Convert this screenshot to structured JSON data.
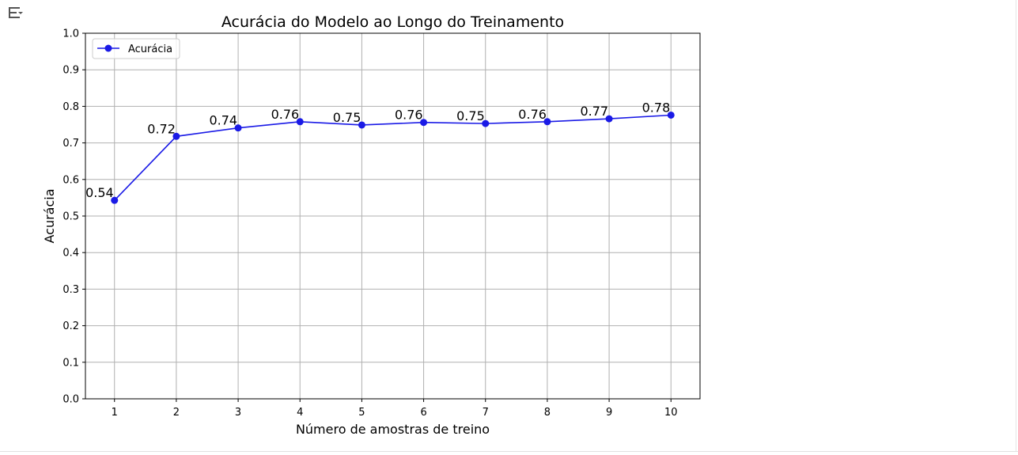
{
  "toolbar": {
    "output_icon": "output-options-icon"
  },
  "chart_data": {
    "type": "line",
    "title": "Acurácia do Modelo ao Longo do Treinamento",
    "xlabel": "Número de amostras de treino",
    "ylabel": "Acurácia",
    "x": [
      1,
      2,
      3,
      4,
      5,
      6,
      7,
      8,
      9,
      10
    ],
    "xlim": [
      0.53,
      10.47
    ],
    "ylim": [
      0.0,
      1.0
    ],
    "yticks": [
      "0.0",
      "0.1",
      "0.2",
      "0.3",
      "0.4",
      "0.5",
      "0.6",
      "0.7",
      "0.8",
      "0.9",
      "1.0"
    ],
    "xticks": [
      "1",
      "2",
      "3",
      "4",
      "5",
      "6",
      "7",
      "8",
      "9",
      "10"
    ],
    "grid": true,
    "legend_position": "top-left",
    "series": [
      {
        "name": "Acurácia",
        "color": "#1a1ae6",
        "marker": "circle",
        "values": [
          0.543,
          0.718,
          0.741,
          0.758,
          0.749,
          0.756,
          0.753,
          0.758,
          0.766,
          0.776
        ],
        "data_labels": [
          "0.54",
          "0.72",
          "0.74",
          "0.76",
          "0.75",
          "0.76",
          "0.75",
          "0.76",
          "0.77",
          "0.78"
        ]
      }
    ]
  }
}
